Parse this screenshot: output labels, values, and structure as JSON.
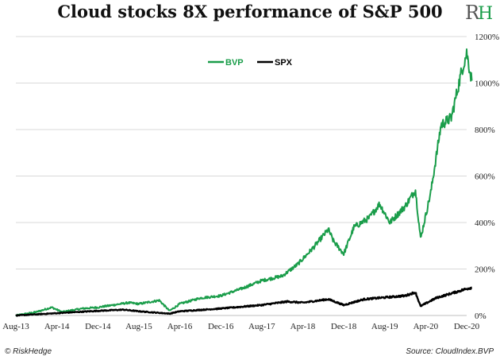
{
  "header": {
    "title": "Cloud stocks 8X performance of S&P 500",
    "logo_text": "RH"
  },
  "footer": {
    "left": "© RiskHedge",
    "right": "Source: CloudIndex.BVP"
  },
  "colors": {
    "bvp": "#1a9d4a",
    "spx": "#000000",
    "grid": "#d9d9d9"
  },
  "chart_data": {
    "type": "line",
    "title": "Cloud stocks 8X performance of S&P 500",
    "xlabel": "",
    "ylabel": "",
    "x_ticks": [
      "Aug-13",
      "Apr-14",
      "Dec-14",
      "Aug-15",
      "Apr-16",
      "Dec-16",
      "Aug-17",
      "Apr-18",
      "Dec-18",
      "Aug-19",
      "Apr-20",
      "Dec-20"
    ],
    "y_ticks": [
      "0%",
      "200%",
      "400%",
      "600%",
      "800%",
      "1000%",
      "1200%"
    ],
    "ylim": [
      0,
      1200
    ],
    "grid": "horizontal",
    "legend_position": "top-left",
    "series": [
      {
        "name": "BVP",
        "color": "#1a9d4a",
        "points": [
          [
            "2013-08",
            0
          ],
          [
            "2013-12",
            15
          ],
          [
            "2014-03",
            35
          ],
          [
            "2014-05",
            15
          ],
          [
            "2014-09",
            30
          ],
          [
            "2014-12",
            35
          ],
          [
            "2015-03",
            45
          ],
          [
            "2015-06",
            55
          ],
          [
            "2015-08",
            50
          ],
          [
            "2015-12",
            65
          ],
          [
            "2016-02",
            20
          ],
          [
            "2016-04",
            50
          ],
          [
            "2016-08",
            75
          ],
          [
            "2016-12",
            85
          ],
          [
            "2017-04",
            115
          ],
          [
            "2017-08",
            150
          ],
          [
            "2017-12",
            170
          ],
          [
            "2018-03",
            220
          ],
          [
            "2018-06",
            290
          ],
          [
            "2018-09",
            370
          ],
          [
            "2018-10",
            320
          ],
          [
            "2018-12",
            265
          ],
          [
            "2019-02",
            380
          ],
          [
            "2019-05",
            420
          ],
          [
            "2019-07",
            480
          ],
          [
            "2019-09",
            400
          ],
          [
            "2019-12",
            470
          ],
          [
            "2020-02",
            540
          ],
          [
            "2020-03",
            330
          ],
          [
            "2020-05",
            530
          ],
          [
            "2020-07",
            820
          ],
          [
            "2020-09",
            850
          ],
          [
            "2020-10",
            950
          ],
          [
            "2020-11",
            1050
          ],
          [
            "2020-12",
            1130
          ],
          [
            "2021-01",
            1010
          ]
        ]
      },
      {
        "name": "SPX",
        "color": "#000000",
        "points": [
          [
            "2013-08",
            0
          ],
          [
            "2014-04",
            10
          ],
          [
            "2014-12",
            20
          ],
          [
            "2015-05",
            25
          ],
          [
            "2015-08",
            18
          ],
          [
            "2016-02",
            8
          ],
          [
            "2016-04",
            18
          ],
          [
            "2016-12",
            30
          ],
          [
            "2017-08",
            45
          ],
          [
            "2018-01",
            60
          ],
          [
            "2018-04",
            55
          ],
          [
            "2018-09",
            70
          ],
          [
            "2018-12",
            45
          ],
          [
            "2019-04",
            70
          ],
          [
            "2019-12",
            85
          ],
          [
            "2020-02",
            100
          ],
          [
            "2020-03",
            40
          ],
          [
            "2020-06",
            75
          ],
          [
            "2020-09",
            95
          ],
          [
            "2020-12",
            115
          ],
          [
            "2021-01",
            120
          ]
        ]
      }
    ]
  }
}
